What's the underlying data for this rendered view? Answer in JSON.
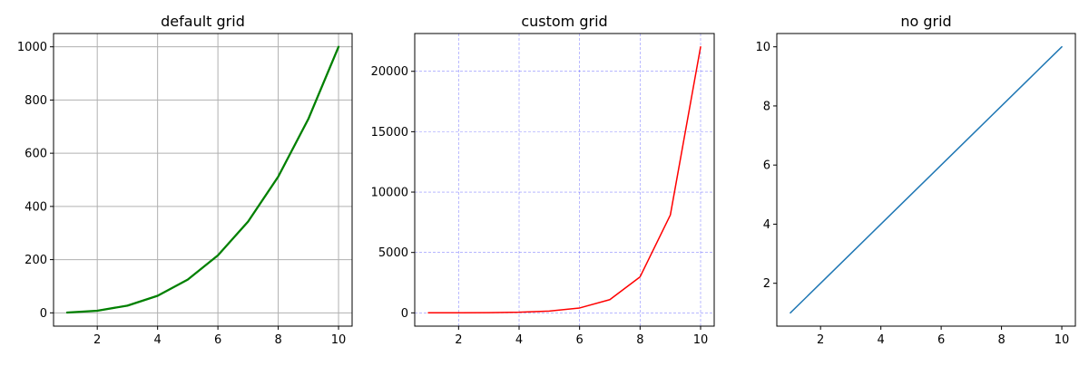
{
  "figure": {
    "background": "#ffffff"
  },
  "chart_data": [
    {
      "type": "line",
      "title": "default grid",
      "xlabel": "",
      "ylabel": "",
      "x": [
        1,
        2,
        3,
        4,
        5,
        6,
        7,
        8,
        9,
        10
      ],
      "series": [
        {
          "values": [
            1,
            8,
            27,
            64,
            125,
            216,
            343,
            512,
            729,
            1000
          ],
          "color": "#008000",
          "line_width": "thick"
        }
      ],
      "xlim": [
        0.55,
        10.45
      ],
      "ylim": [
        -50,
        1050
      ],
      "xticks": [
        2,
        4,
        6,
        8,
        10
      ],
      "yticks": [
        0,
        200,
        400,
        600,
        800,
        1000
      ],
      "grid": {
        "enabled": true,
        "color": "#b0b0b0",
        "style": "solid"
      }
    },
    {
      "type": "line",
      "title": "custom grid",
      "xlabel": "",
      "ylabel": "",
      "x": [
        1,
        2,
        3,
        4,
        5,
        6,
        7,
        8,
        9,
        10
      ],
      "series": [
        {
          "values": [
            2.7,
            7.4,
            20.1,
            54.6,
            148.4,
            403.4,
            1096.6,
            2981.0,
            8103.1,
            22026.5
          ],
          "color": "#ff0000",
          "line_width": "normal"
        }
      ],
      "xlim": [
        0.55,
        10.45
      ],
      "ylim": [
        -1100,
        23130
      ],
      "xticks": [
        2,
        4,
        6,
        8,
        10
      ],
      "yticks": [
        0,
        5000,
        10000,
        15000,
        20000
      ],
      "grid": {
        "enabled": true,
        "color": "#0000ff",
        "style": "dashed"
      }
    },
    {
      "type": "line",
      "title": "no grid",
      "xlabel": "",
      "ylabel": "",
      "x": [
        1,
        2,
        3,
        4,
        5,
        6,
        7,
        8,
        9,
        10
      ],
      "series": [
        {
          "values": [
            1,
            2,
            3,
            4,
            5,
            6,
            7,
            8,
            9,
            10
          ],
          "color": "#1f77b4",
          "line_width": "normal"
        }
      ],
      "xlim": [
        0.55,
        10.45
      ],
      "ylim": [
        0.55,
        10.45
      ],
      "xticks": [
        2,
        4,
        6,
        8,
        10
      ],
      "yticks": [
        2,
        4,
        6,
        8,
        10
      ],
      "grid": {
        "enabled": false
      }
    }
  ]
}
